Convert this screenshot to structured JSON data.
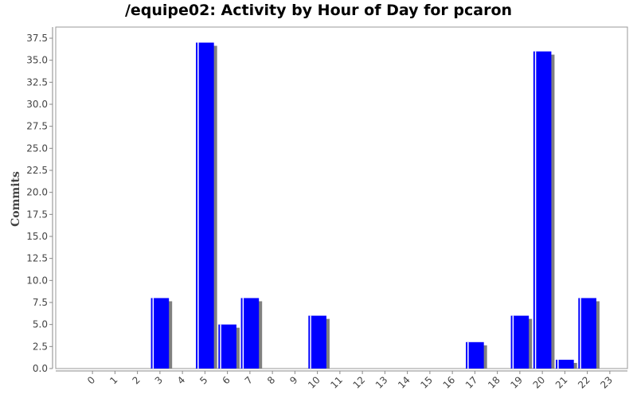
{
  "chart_data": {
    "type": "bar",
    "title": "/equipe02: Activity by Hour of Day for pcaron",
    "xlabel": "",
    "ylabel": "Commits",
    "categories": [
      "0",
      "1",
      "2",
      "3",
      "4",
      "5",
      "6",
      "7",
      "8",
      "9",
      "10",
      "11",
      "12",
      "13",
      "14",
      "15",
      "16",
      "17",
      "18",
      "19",
      "20",
      "21",
      "22",
      "23"
    ],
    "values": [
      0,
      0,
      0,
      8,
      0,
      37,
      5,
      8,
      0,
      0,
      6,
      0,
      0,
      0,
      0,
      0,
      0,
      3,
      0,
      6,
      36,
      1,
      8,
      0
    ],
    "ylim": [
      0,
      38.5
    ],
    "yticks": [
      "0.0",
      "2.5",
      "5.0",
      "7.5",
      "10.0",
      "12.5",
      "15.0",
      "17.5",
      "20.0",
      "22.5",
      "25.0",
      "27.5",
      "30.0",
      "32.5",
      "35.0",
      "37.5"
    ],
    "grid": false,
    "legend": "none",
    "colors": {
      "bar": "#0000ff",
      "shadow": "#808080",
      "highlight": "#ffffff",
      "axis": "#888888"
    }
  }
}
